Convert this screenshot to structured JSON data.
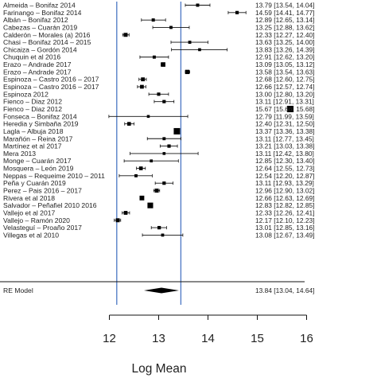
{
  "chart_data": {
    "type": "forest",
    "xlabel": "Log Mean",
    "xlim": [
      11.5,
      16.2
    ],
    "xticks": [
      "12",
      "13",
      "14",
      "15",
      "16"
    ],
    "xtick_values": [
      12,
      13,
      14,
      15,
      16
    ],
    "reference_lines": [
      12.15,
      13.45
    ],
    "reference_line_color": "#4a77c4",
    "studies": [
      {
        "label": "Almeida – Bonifaz 2014",
        "est": 13.79,
        "lo": 13.54,
        "hi": 14.04,
        "text": "13.79 [13.54, 14.04]"
      },
      {
        "label": "Farinango – Bonifaz 2014",
        "est": 14.59,
        "lo": 14.41,
        "hi": 14.77,
        "text": "14.59 [14.41, 14.77]"
      },
      {
        "label": "Albán – Bonifaz 2012",
        "est": 12.89,
        "lo": 12.65,
        "hi": 13.14,
        "text": "12.89 [12.65, 13.14]"
      },
      {
        "label": "Cabezas – Cuarán 2019",
        "est": 13.25,
        "lo": 12.88,
        "hi": 13.62,
        "text": "13.25 [12.88, 13.62]"
      },
      {
        "label": "Calderón – Morales (a) 2016",
        "est": 12.33,
        "lo": 12.27,
        "hi": 12.4,
        "text": "12.33 [12.27, 12.40]"
      },
      {
        "label": "Chasi – Bonifaz 2014 – 2015",
        "est": 13.63,
        "lo": 13.25,
        "hi": 14.0,
        "text": "13.63 [13.25, 14.00]"
      },
      {
        "label": "Chicaiza – Gordón 2014",
        "est": 13.83,
        "lo": 13.26,
        "hi": 14.39,
        "text": "13.83 [13.26, 14.39]"
      },
      {
        "label": "Chuquin et al 2016",
        "est": 12.91,
        "lo": 12.62,
        "hi": 13.2,
        "text": "12.91 [12.62, 13.20]"
      },
      {
        "label": "Erazo – Andrade 2017",
        "est": 13.09,
        "lo": 13.05,
        "hi": 13.12,
        "text": "13.09 [13.05, 13.12]"
      },
      {
        "label": "Erazo – Andrade 2017",
        "est": 13.58,
        "lo": 13.54,
        "hi": 13.63,
        "text": "13.58 [13.54, 13.63]"
      },
      {
        "label": "Espinoza – Castro 2016 – 2017",
        "est": 12.68,
        "lo": 12.6,
        "hi": 12.75,
        "text": "12.68 [12.60, 12.75]"
      },
      {
        "label": "Espinoza – Castro 2016 – 2017",
        "est": 12.66,
        "lo": 12.57,
        "hi": 12.74,
        "text": "12.66 [12.57, 12.74]"
      },
      {
        "label": "Espinoza 2012",
        "est": 13.0,
        "lo": 12.8,
        "hi": 13.2,
        "text": "13.00 [12.80, 13.20]"
      },
      {
        "label": "Fienco – Diaz 2012",
        "est": 13.11,
        "lo": 12.91,
        "hi": 13.31,
        "text": "13.11 [12.91, 13.31]"
      },
      {
        "label": "Fienco – Diaz 2012",
        "est": 15.67,
        "lo": 15.66,
        "hi": 15.68,
        "text": "15.67 [15.66, 15.68]"
      },
      {
        "label": "Fonseca – Bonifaz 2014",
        "est": 12.79,
        "lo": 11.99,
        "hi": 13.59,
        "text": "12.79 [11.99, 13.59]"
      },
      {
        "label": "Heredia y Simbaña 2019",
        "est": 12.4,
        "lo": 12.31,
        "hi": 12.5,
        "text": "12.40 [12.31, 12.50]"
      },
      {
        "label": "Lagla – Albuja 2018",
        "est": 13.37,
        "lo": 13.36,
        "hi": 13.38,
        "text": "13.37 [13.36, 13.38]"
      },
      {
        "label": "Marañón – Reina 2017",
        "est": 13.11,
        "lo": 12.77,
        "hi": 13.45,
        "text": "13.11 [12.77, 13.45]"
      },
      {
        "label": "Martínez et al 2017",
        "est": 13.21,
        "lo": 13.03,
        "hi": 13.38,
        "text": "13.21 [13.03, 13.38]"
      },
      {
        "label": "Mera 2013",
        "est": 13.11,
        "lo": 12.42,
        "hi": 13.8,
        "text": "13.11 [12.42, 13.80]"
      },
      {
        "label": "Monge – Cuarán 2017",
        "est": 12.85,
        "lo": 12.3,
        "hi": 13.4,
        "text": "12.85 [12.30, 13.40]"
      },
      {
        "label": "Mosquera – León 2019",
        "est": 12.64,
        "lo": 12.55,
        "hi": 12.73,
        "text": "12.64 [12.55, 12.73]"
      },
      {
        "label": "Neppas – Requeime 2010 – 2011",
        "est": 12.54,
        "lo": 12.2,
        "hi": 12.87,
        "text": "12.54 [12.20, 12.87]"
      },
      {
        "label": "Peña y Cuarán 2019",
        "est": 13.11,
        "lo": 12.93,
        "hi": 13.29,
        "text": "13.11 [12.93, 13.29]"
      },
      {
        "label": "Perez – Pais 2016 – 2017",
        "est": 12.96,
        "lo": 12.9,
        "hi": 13.02,
        "text": "12.96 [12.90, 13.02]"
      },
      {
        "label": "Rivera et al 2018",
        "est": 12.66,
        "lo": 12.63,
        "hi": 12.69,
        "text": "12.66 [12.63, 12.69]"
      },
      {
        "label": "Salvador – Peñafiel 2010 2016",
        "est": 12.83,
        "lo": 12.82,
        "hi": 12.85,
        "text": "12.83 [12.82, 12.85]"
      },
      {
        "label": "Vallejo et al 2017",
        "est": 12.33,
        "lo": 12.26,
        "hi": 12.41,
        "text": "12.33 [12.26, 12.41]"
      },
      {
        "label": "Vallejo – Ramón 2020",
        "est": 12.17,
        "lo": 12.1,
        "hi": 12.23,
        "text": "12.17 [12.10, 12.23]"
      },
      {
        "label": "Velasteguí – Proaño 2017",
        "est": 13.01,
        "lo": 12.85,
        "hi": 13.16,
        "text": "13.01 [12.85, 13.16]"
      },
      {
        "label": "Villegas et al 2010",
        "est": 13.08,
        "lo": 12.67,
        "hi": 13.49,
        "text": "13.08 [12.67, 13.49]"
      }
    ],
    "summary": {
      "label": "RE Model",
      "est": 13.84,
      "lo": 13.04,
      "hi": 14.64,
      "text": "13.84 [13.04, 14.64]"
    }
  }
}
